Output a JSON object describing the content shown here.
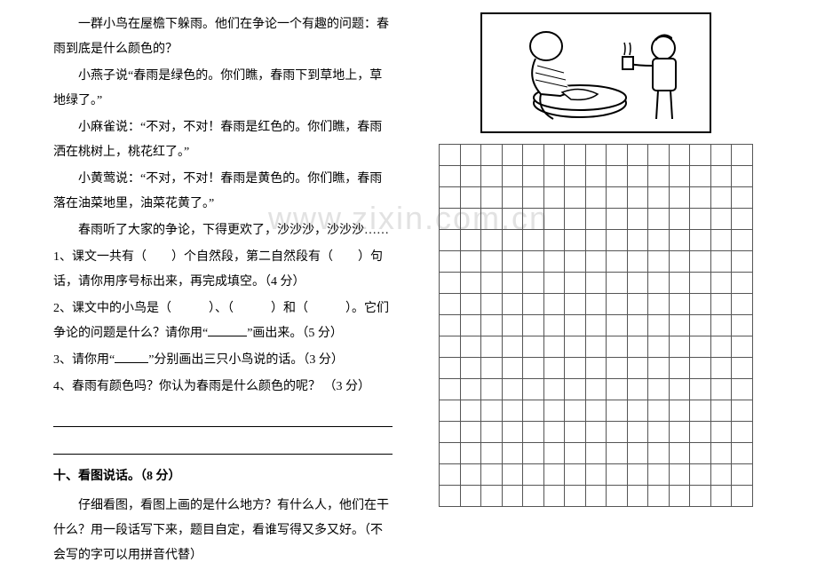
{
  "watermark": "www.zixin.com.cn",
  "passage": {
    "p1": "一群小鸟在屋檐下躲雨。他们在争论一个有趣的问题：春雨到底是什么颜色的？",
    "p2": "小燕子说“春雨是绿色的。你们瞧，春雨下到草地上，草地绿了。”",
    "p3": "小麻雀说：“不对，不对！春雨是红色的。你们瞧，春雨洒在桃树上，桃花红了。”",
    "p4": "小黄莺说：“不对，不对！春雨是黄色的。你们瞧，春雨落在油菜地里，油菜花黄了。”",
    "p5": "春雨听了大家的争论，下得更欢了，沙沙沙，沙沙沙……"
  },
  "questions": {
    "q1_a": "1、课文一共有（　　）个自然段，第二自然段有（　　）句话，请你用序号标出来，再完成填空。（4 分）",
    "q2_a": "2、课文中的小鸟是（　　　）、（　　　）和（　　　）。它们争论的问题是什么？请你用“",
    "q2_b": "”画出来。（5 分）",
    "q3_a": "3、请你用“",
    "q3_b": "”分别画出三只小鸟说的话。（3 分）",
    "q4": "4、春雨有颜色吗？你认为春雨是什么颜色的呢？ （3 分）"
  },
  "section10": {
    "title": "十、看图说话。（8 分）",
    "body": "仔细看图，看图上画的是什么地方？有什么人，他们在干什么？用一段话写下来，题目自定，看谁写得又多又好。（不会写的字可以用拼音代替）"
  },
  "grid": {
    "rows": 17,
    "cols": 15
  },
  "colors": {
    "text": "#000000",
    "background": "#ffffff",
    "grid_border": "#555555",
    "watermark": "#e2e2e2"
  },
  "fonts": {
    "body_size_pt": 10.5,
    "watermark_size_pt": 27
  }
}
